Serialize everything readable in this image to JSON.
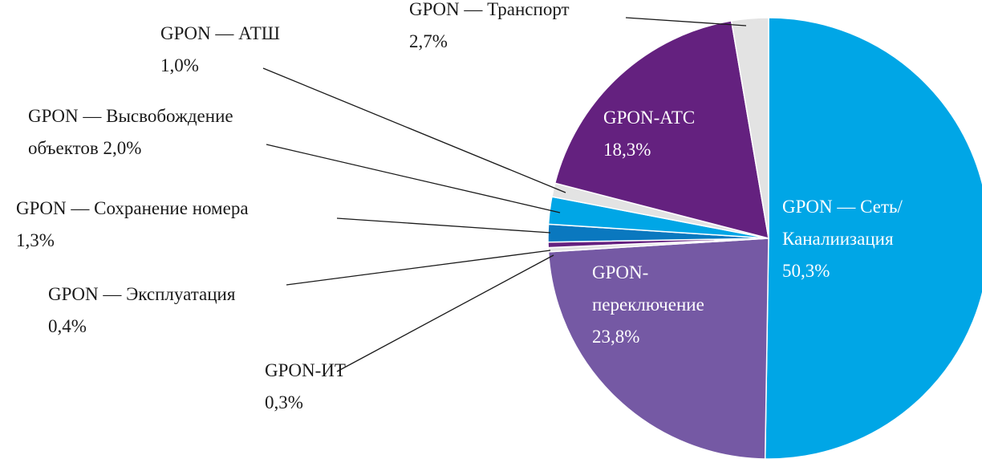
{
  "chart_data": {
    "type": "pie",
    "categories": [
      "GPON — Сеть/\nКаналиизация",
      "GPON-\nпереключение",
      "GPON-ИТ",
      "GPON — Эксплуатация",
      "GPON — Сохранение номера",
      "GPON — Высвобождение\nобъектов",
      "GPON — АТШ",
      "GPON-АТС",
      "GPON — Транспорт"
    ],
    "values": [
      50.3,
      23.8,
      0.3,
      0.4,
      1.3,
      2.0,
      1.0,
      18.3,
      2.7
    ],
    "value_labels": [
      "50,3%",
      "23,8%",
      "0,3%",
      "0,4%",
      "1,3%",
      "2,0%",
      "1,0%",
      "18,3%",
      "2,7%"
    ],
    "colors": [
      "#00a6e6",
      "#7559a4",
      "#e3e3e3",
      "#64217f",
      "#0a78bf",
      "#00a6e6",
      "#e3e3e3",
      "#64217f",
      "#e3e3e3"
    ]
  }
}
